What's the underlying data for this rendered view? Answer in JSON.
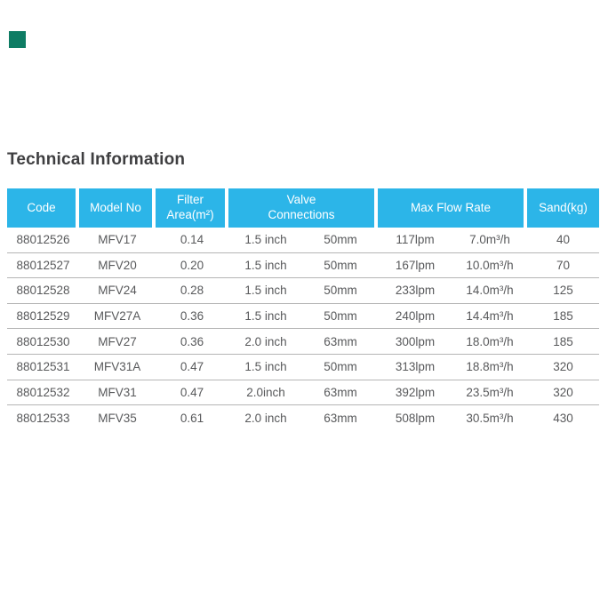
{
  "colors": {
    "header-bg": "#2CB5E8",
    "header-text": "#FFFFFF",
    "body-text": "#58595B",
    "divider": "#B5B5B5",
    "title-text": "#3E3E40",
    "swatch": "#0E7C64",
    "page-bg": "#FFFFFF"
  },
  "page": {
    "title": "Technical Information"
  },
  "table": {
    "headers": {
      "code": "Code",
      "model": "Model No",
      "filter_line1": "Filter",
      "filter_line2": "Area(m²)",
      "valve_line1": "Valve",
      "valve_line2": "Connections",
      "flow": "Max Flow Rate",
      "sand": "Sand(kg)"
    },
    "rows": [
      {
        "code": "88012526",
        "model": "MFV17",
        "filter_area": "0.14",
        "valve_size": "1.5 inch",
        "valve_mm": "50mm",
        "flow_lpm": "117lpm",
        "flow_m3h": "7.0m³/h",
        "sand": "40"
      },
      {
        "code": "88012527",
        "model": "MFV20",
        "filter_area": "0.20",
        "valve_size": "1.5 inch",
        "valve_mm": "50mm",
        "flow_lpm": "167lpm",
        "flow_m3h": "10.0m³/h",
        "sand": "70"
      },
      {
        "code": "88012528",
        "model": "MFV24",
        "filter_area": "0.28",
        "valve_size": "1.5 inch",
        "valve_mm": "50mm",
        "flow_lpm": "233lpm",
        "flow_m3h": "14.0m³/h",
        "sand": "125"
      },
      {
        "code": "88012529",
        "model": "MFV27A",
        "filter_area": "0.36",
        "valve_size": "1.5 inch",
        "valve_mm": "50mm",
        "flow_lpm": "240lpm",
        "flow_m3h": "14.4m³/h",
        "sand": "185"
      },
      {
        "code": "88012530",
        "model": "MFV27",
        "filter_area": "0.36",
        "valve_size": "2.0 inch",
        "valve_mm": "63mm",
        "flow_lpm": "300lpm",
        "flow_m3h": "18.0m³/h",
        "sand": "185"
      },
      {
        "code": "88012531",
        "model": "MFV31A",
        "filter_area": "0.47",
        "valve_size": "1.5 inch",
        "valve_mm": "50mm",
        "flow_lpm": "313lpm",
        "flow_m3h": "18.8m³/h",
        "sand": "320"
      },
      {
        "code": "88012532",
        "model": "MFV31",
        "filter_area": "0.47",
        "valve_size": "2.0inch",
        "valve_mm": "63mm",
        "flow_lpm": "392lpm",
        "flow_m3h": "23.5m³/h",
        "sand": "320"
      },
      {
        "code": "88012533",
        "model": "MFV35",
        "filter_area": "0.61",
        "valve_size": "2.0 inch",
        "valve_mm": "63mm",
        "flow_lpm": "508lpm",
        "flow_m3h": "30.5m³/h",
        "sand": "430"
      }
    ]
  }
}
